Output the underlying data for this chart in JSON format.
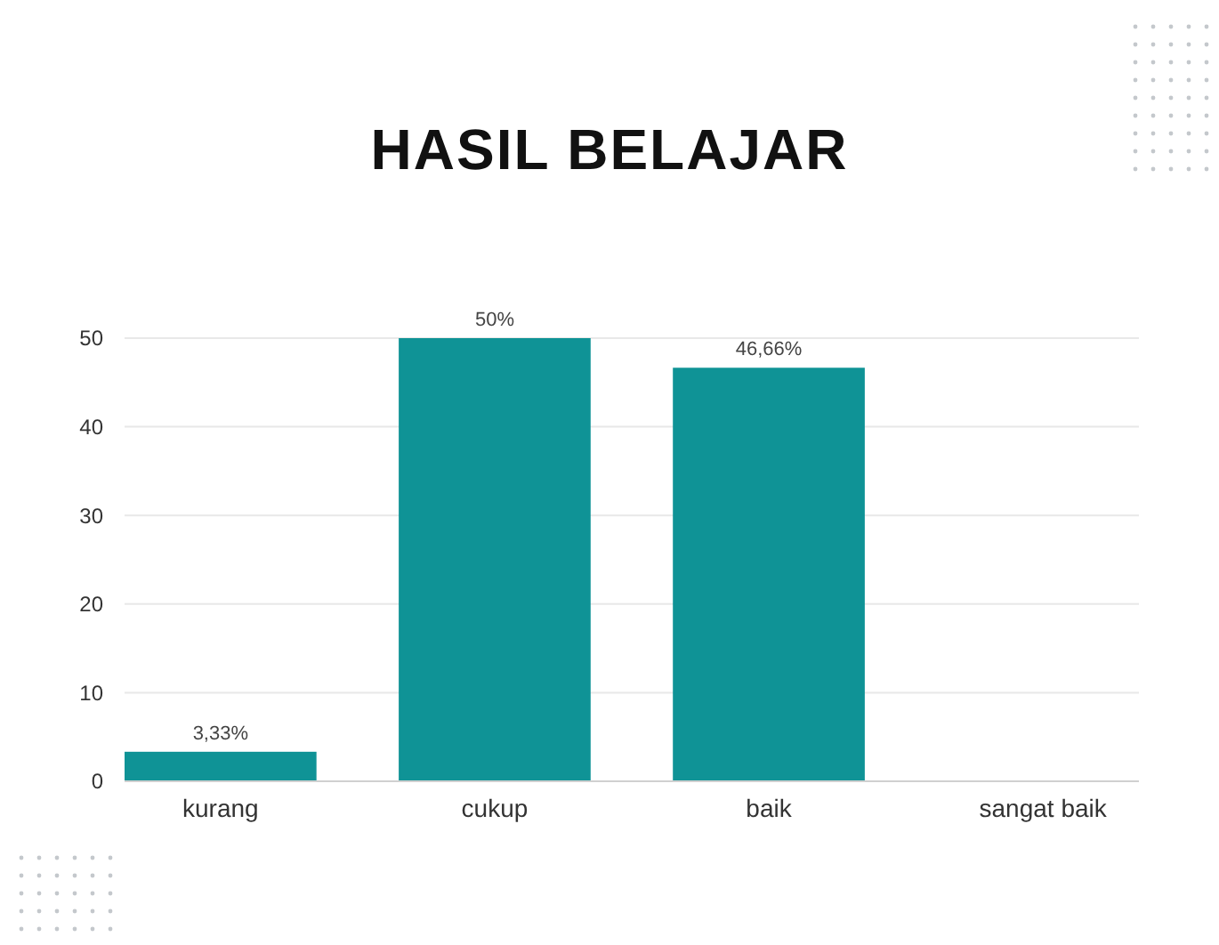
{
  "chart_data": {
    "type": "bar",
    "title": "HASIL BELAJAR",
    "categories": [
      "kurang",
      "cukup",
      "baik",
      "sangat baik"
    ],
    "values": [
      3.33,
      50,
      46.66,
      0
    ],
    "value_labels": [
      "3,33%",
      "50%",
      "46,66%",
      null
    ],
    "color": "#0f9396",
    "ylim": [
      0,
      50
    ],
    "yticks": [
      0,
      10,
      20,
      30,
      40,
      50
    ],
    "grid": "y"
  }
}
